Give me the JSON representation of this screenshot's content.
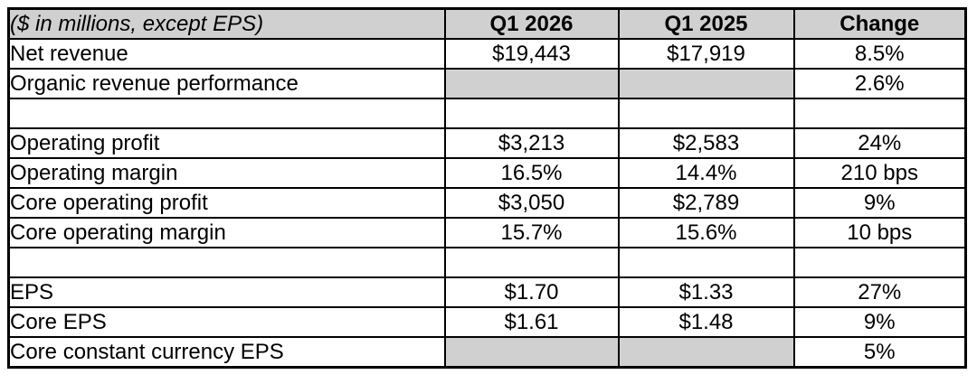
{
  "table": {
    "header": {
      "note": "($ in millions, except EPS)",
      "col_q1_2026": "Q1 2026",
      "col_q1_2025": "Q1 2025",
      "col_change": "Change"
    },
    "colors": {
      "header_bg": "#d0d0d0",
      "shaded_cell_bg": "#d0d0d0",
      "border": "#000000",
      "row_bg": "#ffffff",
      "text": "#000000"
    },
    "rows": [
      {
        "type": "data",
        "label": "Net revenue",
        "q1_2026": "$19,443",
        "q1_2025": "$17,919",
        "change": "8.5%",
        "shaded_values": false
      },
      {
        "type": "data",
        "label": "Organic revenue performance",
        "q1_2026": "",
        "q1_2025": "",
        "change": "2.6%",
        "shaded_values": true
      },
      {
        "type": "spacer",
        "label": "",
        "q1_2026": "",
        "q1_2025": "",
        "change": "",
        "shaded_values": false
      },
      {
        "type": "data",
        "label": "Operating profit",
        "q1_2026": "$3,213",
        "q1_2025": "$2,583",
        "change": "24%",
        "shaded_values": false
      },
      {
        "type": "data",
        "label": "Operating margin",
        "q1_2026": "16.5%",
        "q1_2025": "14.4%",
        "change": "210 bps",
        "shaded_values": false
      },
      {
        "type": "data",
        "label": "Core operating profit",
        "q1_2026": "$3,050",
        "q1_2025": "$2,789",
        "change": "9%",
        "shaded_values": false
      },
      {
        "type": "data",
        "label": "Core operating margin",
        "q1_2026": "15.7%",
        "q1_2025": "15.6%",
        "change": "10 bps",
        "shaded_values": false
      },
      {
        "type": "spacer",
        "label": "",
        "q1_2026": "",
        "q1_2025": "",
        "change": "",
        "shaded_values": false
      },
      {
        "type": "data",
        "label": "EPS",
        "q1_2026": "$1.70",
        "q1_2025": "$1.33",
        "change": "27%",
        "shaded_values": false
      },
      {
        "type": "data",
        "label": "Core EPS",
        "q1_2026": "$1.61",
        "q1_2025": "$1.48",
        "change": "9%",
        "shaded_values": false
      },
      {
        "type": "data",
        "label": "Core constant currency EPS",
        "q1_2026": "",
        "q1_2025": "",
        "change": "5%",
        "shaded_values": true
      }
    ]
  },
  "chart_data": {
    "type": "table",
    "title": "($ in millions, except EPS)",
    "columns": [
      "Q1 2026",
      "Q1 2025",
      "Change"
    ],
    "rows": [
      [
        "Net revenue",
        "$19,443",
        "$17,919",
        "8.5%"
      ],
      [
        "Organic revenue performance",
        "",
        "",
        "2.6%"
      ],
      [
        "",
        "",
        "",
        ""
      ],
      [
        "Operating profit",
        "$3,213",
        "$2,583",
        "24%"
      ],
      [
        "Operating margin",
        "16.5%",
        "14.4%",
        "210 bps"
      ],
      [
        "Core operating profit",
        "$3,050",
        "$2,789",
        "9%"
      ],
      [
        "Core operating margin",
        "15.7%",
        "15.6%",
        "10 bps"
      ],
      [
        "",
        "",
        "",
        ""
      ],
      [
        "EPS",
        "$1.70",
        "$1.33",
        "27%"
      ],
      [
        "Core EPS",
        "$1.61",
        "$1.48",
        "9%"
      ],
      [
        "Core constant currency EPS",
        "",
        "",
        "5%"
      ]
    ]
  }
}
